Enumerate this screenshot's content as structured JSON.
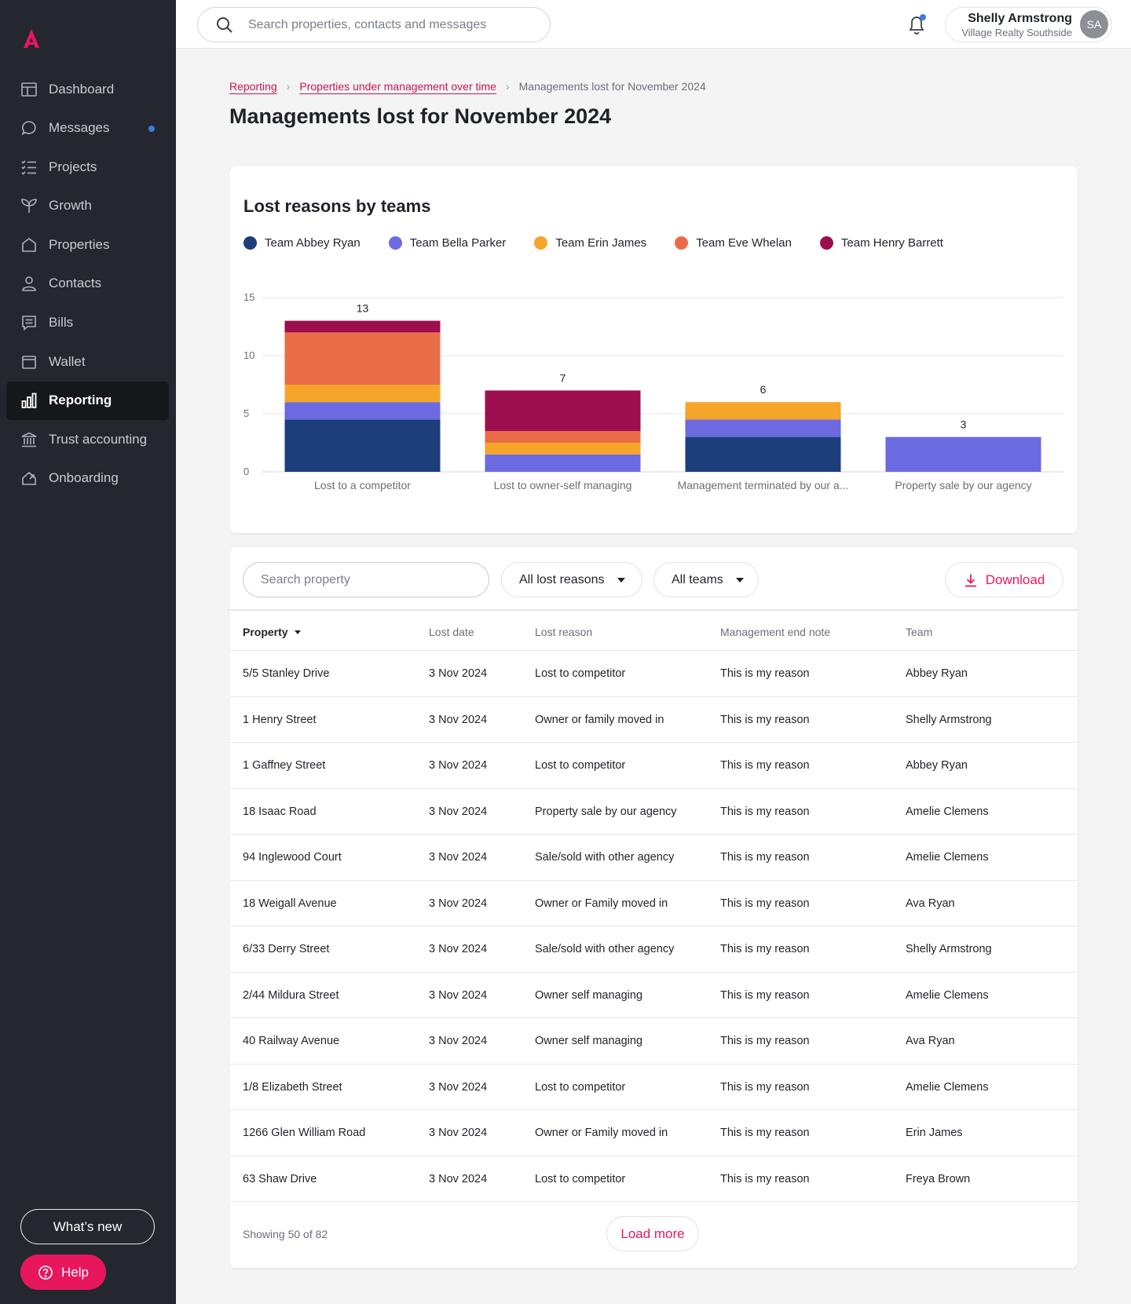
{
  "sidebar": {
    "items": [
      {
        "label": "Dashboard",
        "icon": "dashboard-icon"
      },
      {
        "label": "Messages",
        "icon": "message-icon"
      },
      {
        "label": "Projects",
        "icon": "checklist-icon"
      },
      {
        "label": "Growth",
        "icon": "sprout-icon"
      },
      {
        "label": "Properties",
        "icon": "house-icon"
      },
      {
        "label": "Contacts",
        "icon": "person-icon"
      },
      {
        "label": "Bills",
        "icon": "bill-icon"
      },
      {
        "label": "Wallet",
        "icon": "wallet-icon"
      },
      {
        "label": "Reporting",
        "icon": "bar-chart-icon"
      },
      {
        "label": "Trust accounting",
        "icon": "bank-icon"
      },
      {
        "label": "Onboarding",
        "icon": "onboarding-icon"
      }
    ],
    "active": "Reporting",
    "whats_new_label": "What’s new",
    "help_label": "Help"
  },
  "topbar": {
    "search_placeholder": "Search properties, contacts and messages",
    "user_name": "Shelly Armstrong",
    "user_org": "Village Realty Southside",
    "avatar_initials": "SA"
  },
  "breadcrumb": {
    "items": [
      "Reporting",
      "Properties under management over time"
    ],
    "current": "Managements lost for November 2024"
  },
  "page_title": "Managements lost for November 2024",
  "colors": {
    "accent": "#e8175d",
    "team_abbey_ryan": "#1c3f7c",
    "team_bella_parker": "#6b6ae0",
    "team_erin_james": "#f4a52a",
    "team_eve_whelan": "#eb6d47",
    "team_henry_barrett": "#9c0e4d"
  },
  "chart_data": {
    "type": "bar",
    "stacked": true,
    "title": "Lost reasons by teams",
    "categories": [
      "Lost to a competitor",
      "Lost to owner-self managing",
      "Management terminated by our a...",
      "Property sale by our agency"
    ],
    "totals": [
      13,
      7,
      6,
      3
    ],
    "ylim": [
      0,
      15
    ],
    "yticks": [
      0,
      5,
      10,
      15
    ],
    "grid": true,
    "legend_position": "top-left",
    "series": [
      {
        "name": "Team Abbey Ryan",
        "color": "#1c3f7c",
        "values": [
          4.5,
          0,
          3,
          0
        ]
      },
      {
        "name": "Team Bella Parker",
        "color": "#6b6ae0",
        "values": [
          1.5,
          1.5,
          1.5,
          3
        ]
      },
      {
        "name": "Team Erin James",
        "color": "#f4a52a",
        "values": [
          1.5,
          1,
          1.5,
          0
        ]
      },
      {
        "name": "Team Eve Whelan",
        "color": "#eb6d47",
        "values": [
          4.5,
          1,
          0,
          0
        ]
      },
      {
        "name": "Team Henry Barrett",
        "color": "#9c0e4d",
        "values": [
          1,
          3.5,
          0,
          0
        ]
      }
    ]
  },
  "filters": {
    "search_placeholder": "Search property",
    "reasons_label": "All lost reasons",
    "teams_label": "All teams",
    "download_label": "Download"
  },
  "table": {
    "columns": [
      "Property",
      "Lost date",
      "Lost reason",
      "Management end note",
      "Team"
    ],
    "rows": [
      [
        "5/5 Stanley Drive",
        "3 Nov 2024",
        "Lost to competitor",
        "This is my reason",
        "Abbey Ryan"
      ],
      [
        "1 Henry Street",
        "3 Nov 2024",
        "Owner or family moved in",
        "This is my reason",
        "Shelly Armstrong"
      ],
      [
        "1 Gaffney Street",
        "3 Nov 2024",
        "Lost to competitor",
        "This is my reason",
        "Abbey Ryan"
      ],
      [
        "18 Isaac Road",
        "3 Nov 2024",
        "Property sale by our agency",
        "This is my reason",
        "Amelie Clemens"
      ],
      [
        "94 Inglewood Court",
        "3 Nov 2024",
        "Sale/sold with other agency",
        "This is my reason",
        "Amelie Clemens"
      ],
      [
        "18 Weigall Avenue",
        "3 Nov 2024",
        "Owner or Family moved in",
        "This is my reason",
        "Ava Ryan"
      ],
      [
        "6/33 Derry Street",
        "3 Nov 2024",
        "Sale/sold with other agency",
        "This is my reason",
        "Shelly Armstrong"
      ],
      [
        "2/44 Mildura Street",
        "3 Nov 2024",
        "Owner self managing",
        "This is my reason",
        "Amelie Clemens"
      ],
      [
        "40 Railway Avenue",
        "3 Nov 2024",
        "Owner self managing",
        "This is my reason",
        "Ava Ryan"
      ],
      [
        "1/8 Elizabeth Street",
        "3 Nov 2024",
        "Lost to competitor",
        "This is my reason",
        "Amelie Clemens"
      ],
      [
        "1266 Glen William Road",
        "3 Nov 2024",
        "Owner or Family moved in",
        "This is my reason",
        "Erin James"
      ],
      [
        "63 Shaw Drive",
        "3 Nov 2024",
        "Lost to competitor",
        "This is my reason",
        "Freya Brown"
      ]
    ],
    "showing_text": "Showing 50 of 82",
    "load_more_label": "Load more"
  }
}
